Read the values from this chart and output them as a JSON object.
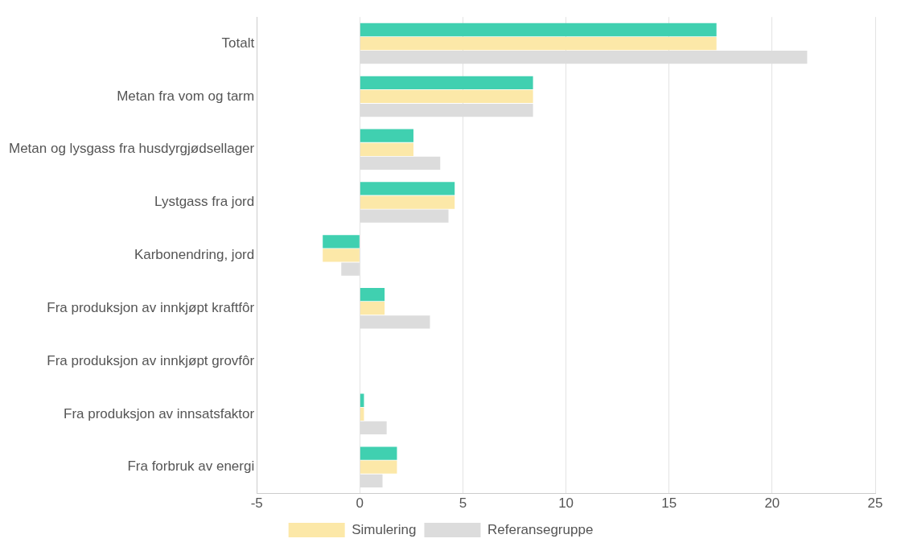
{
  "chart_data": {
    "type": "bar",
    "orientation": "horizontal",
    "categories": [
      "Totalt",
      "Metan fra vom og tarm",
      "Metan og lysgass fra husdyrgjødsellager",
      "Lystgass fra jord",
      "Karbonendring, jord",
      "Fra produksjon av innkjøpt kraftfôr",
      "Fra produksjon av innkjøpt grovfôr",
      "Fra produksjon av innsatsfaktor",
      "Fra forbruk av energi"
    ],
    "series": [
      {
        "color": "#40d0b0",
        "values": [
          17.3,
          8.4,
          2.6,
          4.6,
          -1.8,
          1.2,
          0,
          0.2,
          1.8
        ]
      },
      {
        "name": "Simulering",
        "color": "#fce8a8",
        "values": [
          17.3,
          8.4,
          2.6,
          4.6,
          -1.8,
          1.2,
          0,
          0.2,
          1.8
        ]
      },
      {
        "name": "Referansegruppe",
        "color": "#dcdcdc",
        "values": [
          21.7,
          8.4,
          3.9,
          4.3,
          -0.9,
          3.4,
          0,
          1.3,
          1.1
        ]
      }
    ],
    "xlim": [
      -5,
      25
    ],
    "xticks": [
      -5,
      0,
      5,
      10,
      15,
      20,
      25
    ],
    "grid": "x",
    "legend": "bottom"
  }
}
